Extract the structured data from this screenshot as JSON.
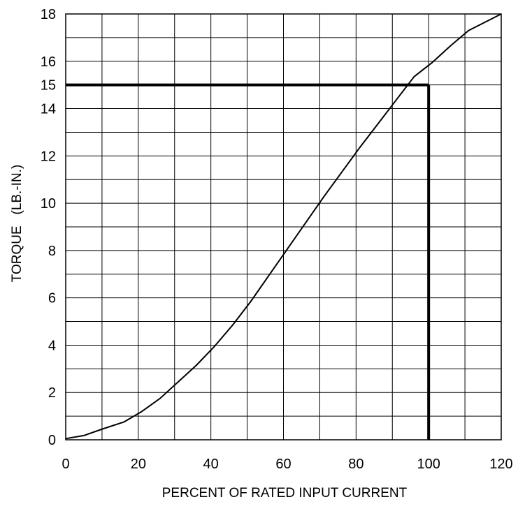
{
  "chart_data": {
    "type": "line",
    "title": "",
    "xlabel": "PERCENT OF RATED INPUT CURRENT",
    "ylabel": "TORQUE   (LB.-IN.)",
    "xlim": [
      0,
      120
    ],
    "ylim": [
      0,
      18
    ],
    "x_tick_labels": [
      "0",
      "20",
      "40",
      "60",
      "80",
      "100",
      "120"
    ],
    "y_tick_labels": [
      "0",
      "2",
      "4",
      "6",
      "8",
      "10",
      "12",
      "14",
      "15",
      "16",
      "18"
    ],
    "grid": true,
    "grid_x_step": 10,
    "grid_y_step": 1,
    "series": [
      {
        "points": [
          [
            0,
            0.05
          ],
          [
            5,
            0.18
          ],
          [
            10,
            0.45
          ],
          [
            16,
            0.75
          ],
          [
            21,
            1.2
          ],
          [
            26,
            1.75
          ],
          [
            31,
            2.45
          ],
          [
            36,
            3.15
          ],
          [
            41,
            3.95
          ],
          [
            46,
            4.85
          ],
          [
            51,
            5.85
          ],
          [
            56,
            6.95
          ],
          [
            61,
            8.05
          ],
          [
            66,
            9.15
          ],
          [
            71,
            10.25
          ],
          [
            76,
            11.3
          ],
          [
            81,
            12.35
          ],
          [
            86,
            13.35
          ],
          [
            91,
            14.35
          ],
          [
            96,
            15.35
          ],
          [
            101,
            15.95
          ],
          [
            106,
            16.65
          ],
          [
            111,
            17.3
          ],
          [
            120,
            18.0
          ]
        ]
      }
    ],
    "reference_point": {
      "x": 100,
      "y": 15
    }
  }
}
